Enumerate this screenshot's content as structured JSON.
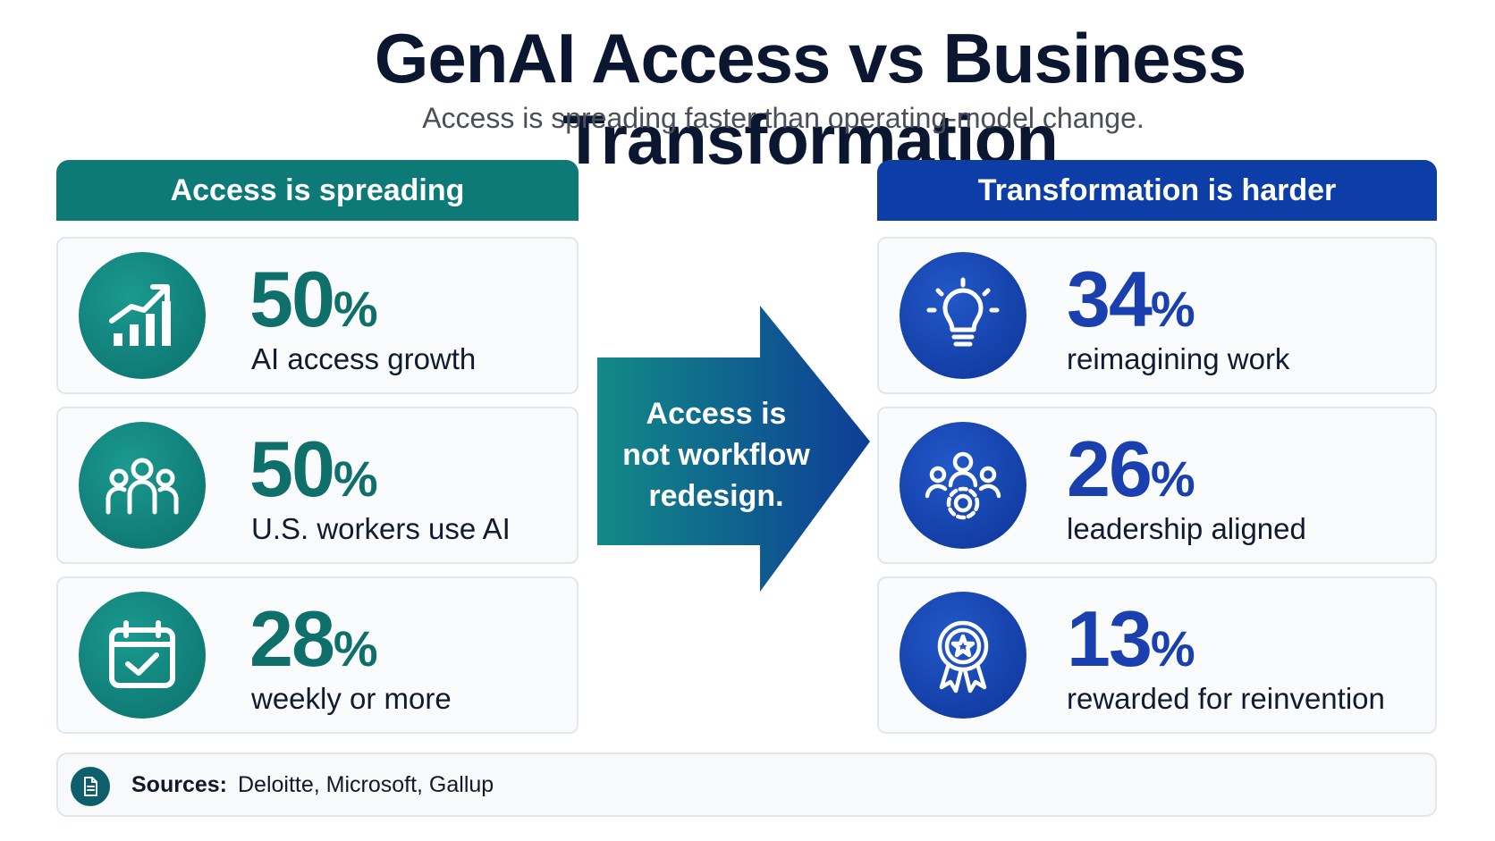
{
  "title": "GenAI Access vs Business Transformation",
  "subtitle": "Access is spreading faster than operating-model change.",
  "left_column": {
    "header": "Access is spreading",
    "color": "#0e7a78",
    "cards": [
      {
        "icon": "growth-chart-icon",
        "value": "50",
        "unit": "%",
        "label": "AI access growth"
      },
      {
        "icon": "people-group-icon",
        "value": "50",
        "unit": "%",
        "label": "U.S. workers use AI"
      },
      {
        "icon": "calendar-check-icon",
        "value": "28",
        "unit": "%",
        "label": "weekly or more"
      }
    ]
  },
  "arrow": {
    "line1": "Access is",
    "line2": "not workflow",
    "line3": "redesign."
  },
  "right_column": {
    "header": "Transformation is harder",
    "color": "#0d3ea8",
    "cards": [
      {
        "icon": "lightbulb-icon",
        "value": "34",
        "unit": "%",
        "label": "reimagining work"
      },
      {
        "icon": "people-gear-icon",
        "value": "26",
        "unit": "%",
        "label": "leadership aligned"
      },
      {
        "icon": "award-ribbon-icon",
        "value": "13",
        "unit": "%",
        "label": "rewarded for reinvention"
      }
    ]
  },
  "sources": {
    "icon": "document-icon",
    "label": "Sources:",
    "text": "Deloitte, Microsoft, Gallup"
  }
}
